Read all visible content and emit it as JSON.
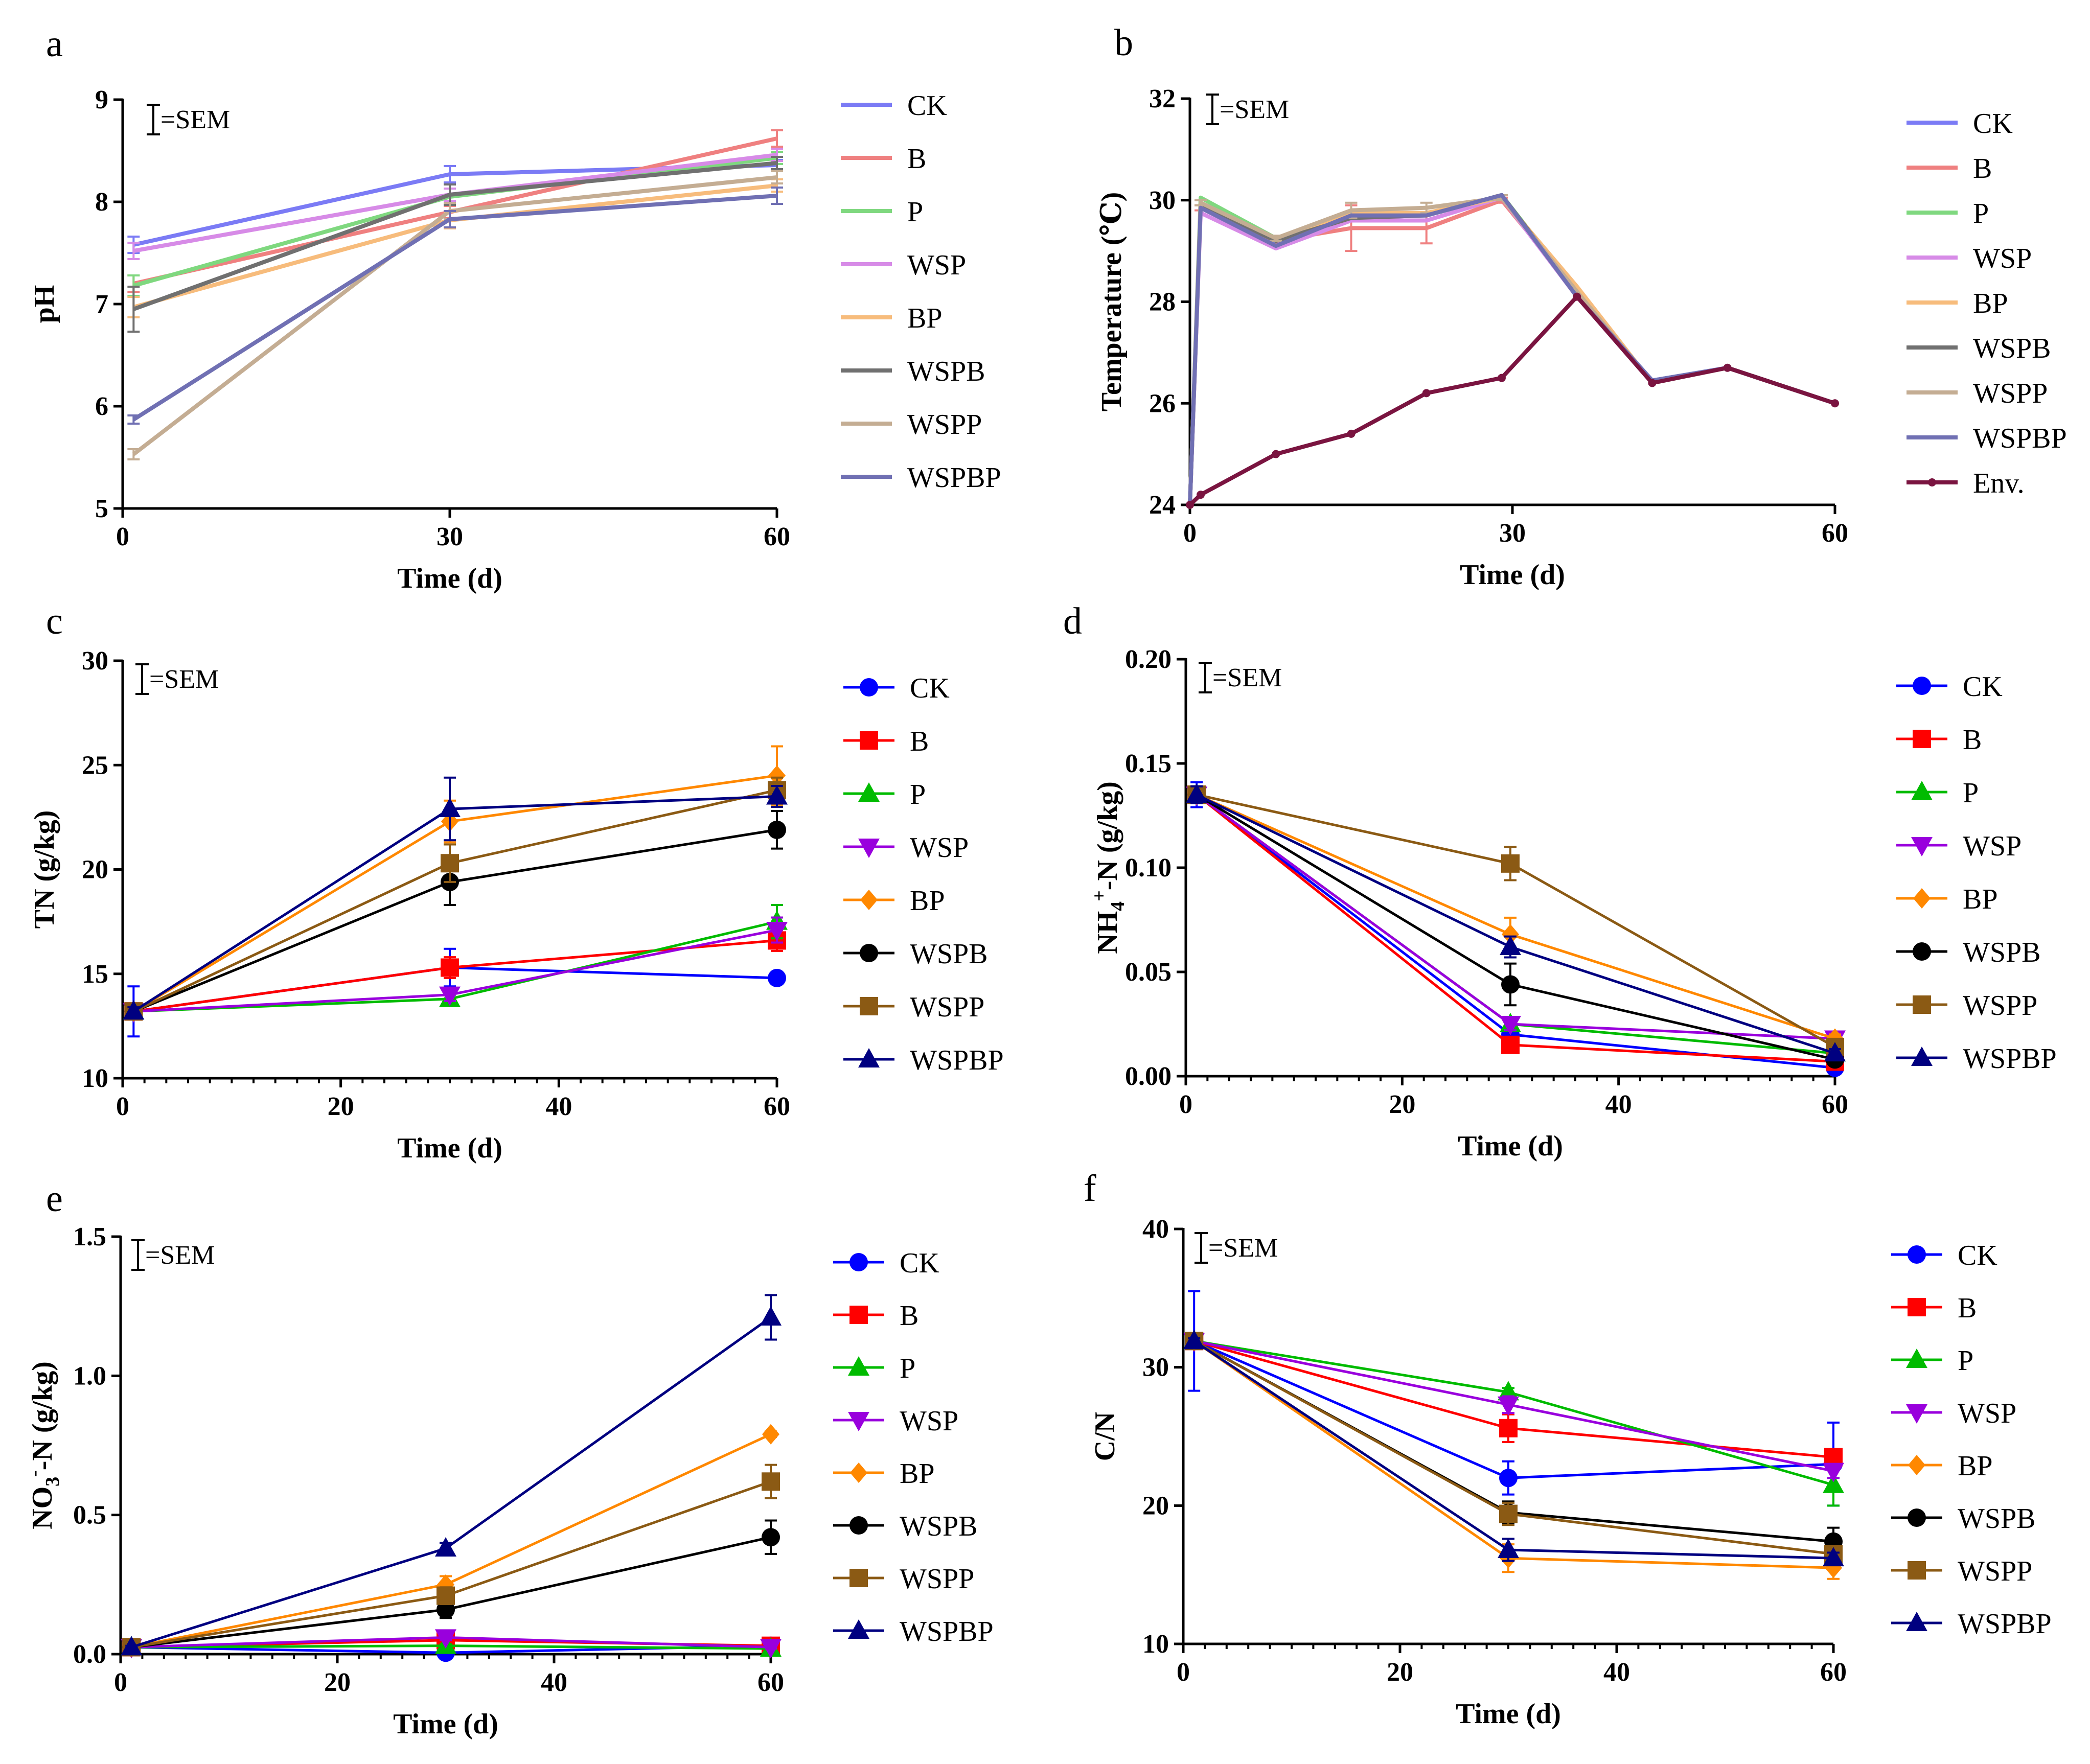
{
  "figure": {
    "sem_label": "=SEM",
    "colors": {
      "CK": "#0000ff",
      "B": "#ff0000",
      "P": "#00bb00",
      "WSP": "#9900dd",
      "BP": "#ff8800",
      "WSPB": "#000000",
      "WSPP": "#8b5a14",
      "WSPBP": "#000080",
      "Env.": "#7a1440"
    },
    "light_colors": {
      "CK": "#7b7bf5",
      "B": "#ef8080",
      "P": "#7fd87f",
      "WSP": "#d78be7",
      "BP": "#f7bc7c",
      "WSPB": "#707070",
      "WSPP": "#c4ad93",
      "WSPBP": "#7070b3"
    }
  },
  "chart_data": [
    {
      "panel": "a",
      "type": "line",
      "xlabel": "Time (d)",
      "ylabel": "pH",
      "xlim": [
        0,
        60
      ],
      "xticks": [
        0,
        30,
        60
      ],
      "xticklabels": [
        "0",
        "30",
        "60"
      ],
      "ylim": [
        5,
        9
      ],
      "yticks": [
        5,
        6,
        7,
        8,
        9
      ],
      "yticklabels": [
        "5",
        "6",
        "7",
        "8",
        "9"
      ],
      "x": [
        1,
        30,
        60
      ],
      "series": [
        {
          "name": "CK",
          "values": [
            7.58,
            8.27,
            8.36
          ],
          "sem": [
            0.08,
            0.08,
            0.05
          ]
        },
        {
          "name": "B",
          "values": [
            7.2,
            7.9,
            8.62
          ],
          "sem": [
            0.08,
            0.06,
            0.08
          ]
        },
        {
          "name": "P",
          "values": [
            7.18,
            8.05,
            8.43
          ],
          "sem": [
            0.1,
            0.08,
            0.06
          ]
        },
        {
          "name": "WSP",
          "values": [
            7.52,
            8.07,
            8.46
          ],
          "sem": [
            0.08,
            0.06,
            0.06
          ]
        },
        {
          "name": "BP",
          "values": [
            6.97,
            7.82,
            8.16
          ],
          "sem": [
            0.1,
            0.08,
            0.06
          ]
        },
        {
          "name": "WSPB",
          "values": [
            6.95,
            8.07,
            8.38
          ],
          "sem": [
            0.22,
            0.1,
            0.06
          ]
        },
        {
          "name": "WSPP",
          "values": [
            5.53,
            7.91,
            8.24
          ],
          "sem": [
            0.05,
            0.08,
            0.06
          ]
        },
        {
          "name": "WSPBP",
          "values": [
            5.87,
            7.83,
            8.06
          ],
          "sem": [
            0.04,
            0.08,
            0.08
          ]
        }
      ]
    },
    {
      "panel": "b",
      "type": "line",
      "xlabel": "Time (d)",
      "ylabel": "Temperature (℃)",
      "xlim": [
        0,
        60
      ],
      "xticks": [
        0,
        30,
        60
      ],
      "xticklabels": [
        "0",
        "30",
        "60"
      ],
      "ylim": [
        24,
        32
      ],
      "yticks": [
        24,
        26,
        28,
        30,
        32
      ],
      "yticklabels": [
        "24",
        "26",
        "28",
        "30",
        "32"
      ],
      "x": [
        0,
        1,
        8,
        15,
        22,
        29,
        36,
        43,
        50,
        60
      ],
      "series": [
        {
          "name": "CK",
          "values": [
            24,
            29.9,
            29.15,
            29.65,
            29.7,
            30.1,
            28.1,
            26.45,
            26.7,
            26.0
          ]
        },
        {
          "name": "B",
          "values": [
            24,
            29.85,
            29.2,
            29.45,
            29.45,
            30.0,
            28.2,
            26.4,
            26.7,
            26.0
          ],
          "sem": [
            0,
            0.05,
            0.1,
            0.45,
            0.3,
            0.05,
            0,
            0,
            0,
            0
          ]
        },
        {
          "name": "P",
          "values": [
            24,
            30.05,
            29.25,
            29.7,
            29.7,
            30.1,
            28.2,
            26.4,
            26.7,
            26.0
          ]
        },
        {
          "name": "WSP",
          "values": [
            24,
            29.75,
            29.05,
            29.6,
            29.6,
            30.05,
            28.1,
            26.4,
            26.7,
            26.0
          ]
        },
        {
          "name": "BP",
          "values": [
            24,
            29.95,
            29.2,
            29.75,
            29.75,
            30.05,
            28.3,
            26.4,
            26.7,
            26.0
          ]
        },
        {
          "name": "WSPB",
          "values": [
            24,
            29.9,
            29.2,
            29.65,
            29.7,
            30.1,
            28.15,
            26.4,
            26.7,
            26.0
          ]
        },
        {
          "name": "WSPP",
          "values": [
            24,
            29.95,
            29.25,
            29.8,
            29.85,
            30.05,
            28.2,
            26.4,
            26.7,
            26.0
          ],
          "sem": [
            0,
            0.05,
            0.05,
            0.15,
            0.1,
            0.05,
            0,
            0,
            0,
            0
          ]
        },
        {
          "name": "WSPBP",
          "values": [
            24,
            29.85,
            29.1,
            29.7,
            29.7,
            30.1,
            28.1,
            26.45,
            26.7,
            26.0
          ]
        },
        {
          "name": "Env.",
          "values": [
            24,
            24.2,
            25.0,
            25.4,
            26.2,
            26.5,
            28.1,
            26.4,
            26.7,
            26.0
          ]
        }
      ]
    },
    {
      "panel": "c",
      "type": "line",
      "xlabel": "Time (d)",
      "ylabel": "TN (g/kg)",
      "xlim": [
        0,
        60
      ],
      "xticks": [
        0,
        20,
        40,
        60
      ],
      "xticklabels": [
        "0",
        "20",
        "40",
        "60"
      ],
      "ylim": [
        10,
        30
      ],
      "yticks": [
        10,
        15,
        20,
        25,
        30
      ],
      "yticklabels": [
        "10",
        "15",
        "20",
        "25",
        "30"
      ],
      "x": [
        1,
        30,
        60
      ],
      "series": [
        {
          "name": "CK",
          "marker": "circle",
          "values": [
            13.2,
            15.3,
            14.8
          ],
          "sem": [
            1.2,
            0.9,
            0.1
          ]
        },
        {
          "name": "B",
          "marker": "square",
          "values": [
            13.2,
            15.3,
            16.6
          ],
          "sem": [
            0.3,
            0.5,
            0.5
          ]
        },
        {
          "name": "P",
          "marker": "triangle-up",
          "values": [
            13.2,
            13.8,
            17.5
          ],
          "sem": [
            0.2,
            0.2,
            0.8
          ]
        },
        {
          "name": "WSP",
          "marker": "triangle-down",
          "values": [
            13.2,
            14.0,
            17.1
          ],
          "sem": [
            0.2,
            0.3,
            0.6
          ]
        },
        {
          "name": "BP",
          "marker": "diamond",
          "values": [
            13.2,
            22.3,
            24.5
          ],
          "sem": [
            0.2,
            1.0,
            1.4
          ]
        },
        {
          "name": "WSPB",
          "marker": "circle",
          "values": [
            13.2,
            19.4,
            21.9
          ],
          "sem": [
            0.2,
            1.1,
            0.9
          ]
        },
        {
          "name": "WSPP",
          "marker": "square",
          "values": [
            13.2,
            20.3,
            23.8
          ],
          "sem": [
            0.2,
            0.9,
            0.6
          ]
        },
        {
          "name": "WSPBP",
          "marker": "triangle-up",
          "values": [
            13.2,
            22.9,
            23.5
          ],
          "sem": [
            0.2,
            1.5,
            0.5
          ]
        }
      ]
    },
    {
      "panel": "d",
      "type": "line",
      "xlabel": "Time (d)",
      "ylabel": "NH4+-N (g/kg)",
      "ylabel_parts": {
        "base": "NH",
        "sub": "4",
        "sup": "+",
        "rest": "-N (g/kg)"
      },
      "xlim": [
        0,
        60
      ],
      "xticks": [
        0,
        20,
        40,
        60
      ],
      "xticklabels": [
        "0",
        "20",
        "40",
        "60"
      ],
      "ylim": [
        0,
        0.2
      ],
      "yticks": [
        0,
        0.05,
        0.1,
        0.15,
        0.2
      ],
      "yticklabels": [
        "0.00",
        "0.05",
        "0.10",
        "0.15",
        "0.20"
      ],
      "x": [
        1,
        30,
        60
      ],
      "series": [
        {
          "name": "CK",
          "marker": "circle",
          "values": [
            0.135,
            0.02,
            0.004
          ],
          "sem": [
            0.006,
            0.003,
            0.001
          ]
        },
        {
          "name": "B",
          "marker": "square",
          "values": [
            0.135,
            0.015,
            0.007
          ],
          "sem": [
            0.004,
            0.002,
            0.001
          ]
        },
        {
          "name": "P",
          "marker": "triangle-up",
          "values": [
            0.135,
            0.025,
            0.011
          ],
          "sem": [
            0.004,
            0.003,
            0.002
          ]
        },
        {
          "name": "WSP",
          "marker": "triangle-down",
          "values": [
            0.135,
            0.025,
            0.018
          ],
          "sem": [
            0.004,
            0.003,
            0.002
          ]
        },
        {
          "name": "BP",
          "marker": "diamond",
          "values": [
            0.135,
            0.068,
            0.018
          ],
          "sem": [
            0.004,
            0.008,
            0.002
          ]
        },
        {
          "name": "WSPB",
          "marker": "circle",
          "values": [
            0.135,
            0.044,
            0.008
          ],
          "sem": [
            0.004,
            0.01,
            0.002
          ]
        },
        {
          "name": "WSPP",
          "marker": "square",
          "values": [
            0.135,
            0.102,
            0.014
          ],
          "sem": [
            0.004,
            0.008,
            0.002
          ]
        },
        {
          "name": "WSPBP",
          "marker": "triangle-up",
          "values": [
            0.135,
            0.062,
            0.011
          ],
          "sem": [
            0.004,
            0.005,
            0.002
          ]
        }
      ]
    },
    {
      "panel": "e",
      "type": "line",
      "xlabel": "Time (d)",
      "ylabel": "NO3--N (g/kg)",
      "ylabel_parts": {
        "base": "NO",
        "sub": "3",
        "sup": "-",
        "rest": "-N (g/kg)"
      },
      "xlim": [
        0,
        60
      ],
      "xticks": [
        0,
        20,
        40,
        60
      ],
      "xticklabels": [
        "0",
        "20",
        "40",
        "60"
      ],
      "ylim": [
        0,
        1.5
      ],
      "yticks": [
        0,
        0.5,
        1.0,
        1.5
      ],
      "yticklabels": [
        "0.0",
        "0.5",
        "1.0",
        "1.5"
      ],
      "x": [
        1,
        30,
        60
      ],
      "series": [
        {
          "name": "CK",
          "marker": "circle",
          "values": [
            0.025,
            0.005,
            0.03
          ],
          "sem": [
            0.005,
            0.003,
            0.005
          ]
        },
        {
          "name": "B",
          "marker": "square",
          "values": [
            0.025,
            0.05,
            0.03
          ],
          "sem": [
            0.005,
            0.01,
            0.005
          ]
        },
        {
          "name": "P",
          "marker": "triangle-up",
          "values": [
            0.025,
            0.03,
            0.02
          ],
          "sem": [
            0.005,
            0.005,
            0.005
          ]
        },
        {
          "name": "WSP",
          "marker": "triangle-down",
          "values": [
            0.025,
            0.06,
            0.025
          ],
          "sem": [
            0.005,
            0.01,
            0.005
          ]
        },
        {
          "name": "BP",
          "marker": "diamond",
          "values": [
            0.025,
            0.25,
            0.79
          ],
          "sem": [
            0.005,
            0.03,
            0.01
          ]
        },
        {
          "name": "WSPB",
          "marker": "circle",
          "values": [
            0.025,
            0.16,
            0.42
          ],
          "sem": [
            0.005,
            0.03,
            0.06
          ]
        },
        {
          "name": "WSPP",
          "marker": "square",
          "values": [
            0.025,
            0.21,
            0.62
          ],
          "sem": [
            0.005,
            0.03,
            0.06
          ]
        },
        {
          "name": "WSPBP",
          "marker": "triangle-up",
          "values": [
            0.025,
            0.38,
            1.21
          ],
          "sem": [
            0.005,
            0.02,
            0.08
          ]
        }
      ]
    },
    {
      "panel": "f",
      "type": "line",
      "xlabel": "Time (d)",
      "ylabel": "C/N",
      "xlim": [
        0,
        60
      ],
      "xticks": [
        0,
        20,
        40,
        60
      ],
      "xticklabels": [
        "0",
        "20",
        "40",
        "60"
      ],
      "ylim": [
        10,
        40
      ],
      "yticks": [
        10,
        20,
        30,
        40
      ],
      "yticklabels": [
        "10",
        "20",
        "30",
        "40"
      ],
      "x": [
        1,
        30,
        60
      ],
      "series": [
        {
          "name": "CK",
          "marker": "circle",
          "values": [
            31.9,
            22.0,
            23.0
          ],
          "sem": [
            3.6,
            1.2,
            3.0
          ]
        },
        {
          "name": "B",
          "marker": "square",
          "values": [
            31.9,
            25.6,
            23.5
          ],
          "sem": [
            0.2,
            1.0,
            0.5
          ]
        },
        {
          "name": "P",
          "marker": "triangle-up",
          "values": [
            31.9,
            28.2,
            21.5
          ],
          "sem": [
            0.2,
            0.3,
            1.5
          ]
        },
        {
          "name": "WSP",
          "marker": "triangle-down",
          "values": [
            31.9,
            27.3,
            22.5
          ],
          "sem": [
            0.2,
            0.6,
            0.5
          ]
        },
        {
          "name": "BP",
          "marker": "diamond",
          "values": [
            31.9,
            16.2,
            15.5
          ],
          "sem": [
            0.2,
            1.0,
            0.8
          ]
        },
        {
          "name": "WSPB",
          "marker": "circle",
          "values": [
            31.9,
            19.5,
            17.4
          ],
          "sem": [
            0.2,
            0.8,
            1.0
          ]
        },
        {
          "name": "WSPP",
          "marker": "square",
          "values": [
            31.9,
            19.4,
            16.5
          ],
          "sem": [
            0.2,
            0.8,
            0.5
          ]
        },
        {
          "name": "WSPBP",
          "marker": "triangle-up",
          "values": [
            31.9,
            16.8,
            16.2
          ],
          "sem": [
            0.2,
            0.8,
            0.4
          ]
        }
      ]
    }
  ]
}
